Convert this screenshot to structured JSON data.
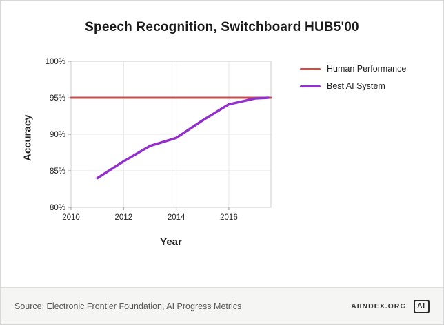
{
  "title": "Speech Recognition, Switchboard HUB5'00",
  "footer": {
    "source": "Source: Electronic Frontier Foundation, AI Progress Metrics",
    "site": "AIINDEX.ORG",
    "logo": "ΛI"
  },
  "chart_data": {
    "type": "line",
    "title": "Speech Recognition, Switchboard HUB5'00",
    "xlabel": "Year",
    "ylabel": "Accuracy",
    "xlim": [
      2010,
      2017.6
    ],
    "ylim": [
      80,
      100
    ],
    "xticks": [
      2010,
      2012,
      2014,
      2016
    ],
    "yticks": [
      80,
      85,
      90,
      95,
      100
    ],
    "ytick_suffix": "%",
    "grid": true,
    "legend_position": "right",
    "colors": {
      "grid": "#e6e6e6",
      "border": "#cccccc",
      "tick_text": "#222222"
    },
    "series": [
      {
        "name": "Human Performance",
        "color": "#c0524d",
        "width": 3,
        "x": [
          2010,
          2017.6
        ],
        "y": [
          95,
          95
        ]
      },
      {
        "name": "Best AI System",
        "color": "#9330cc",
        "width": 3.5,
        "x": [
          2011,
          2012,
          2013,
          2014,
          2015,
          2016,
          2017,
          2017.5
        ],
        "y": [
          84,
          86.3,
          88.4,
          89.5,
          91.9,
          94.1,
          94.9,
          95
        ]
      }
    ]
  }
}
